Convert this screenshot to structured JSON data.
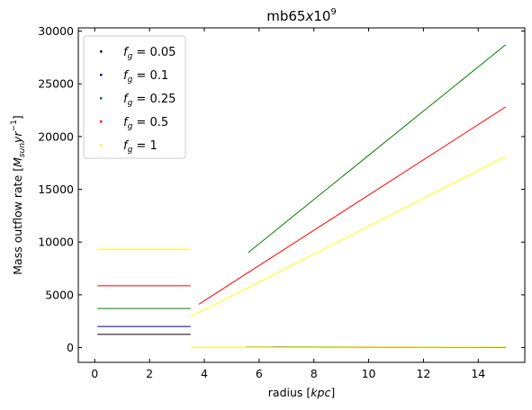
{
  "chart_data": {
    "type": "scatter",
    "title_base": "mb65",
    "title_italic": "x",
    "title_tail": "10",
    "title_exp": "9",
    "xlabel_prefix": "radius [",
    "xlabel_italic": "kpc",
    "xlabel_suffix": "]",
    "ylabel_prefix": "Mass outflow rate [",
    "ylabel_M": "M",
    "ylabel_sub": "sun",
    "ylabel_yr": "yr",
    "ylabel_exp": "−1",
    "ylabel_suffix": "]",
    "xlim": [
      -0.6,
      15.7
    ],
    "ylim": [
      -1400,
      30300
    ],
    "xticks": [
      0,
      2,
      4,
      6,
      8,
      10,
      12,
      14
    ],
    "xtick_labels": [
      "0",
      "2",
      "4",
      "6",
      "8",
      "10",
      "12",
      "14"
    ],
    "yticks": [
      0,
      5000,
      10000,
      15000,
      20000,
      25000,
      30000
    ],
    "ytick_labels": [
      "0",
      "5000",
      "10000",
      "15000",
      "20000",
      "25000",
      "30000"
    ],
    "legend_position": "upper-left",
    "series": [
      {
        "name": "= 0.05",
        "label_f": "f",
        "label_sub": "g",
        "color": "#000000",
        "segments": [
          [
            [
              0.1,
              1250
            ],
            [
              3.5,
              1250
            ]
          ],
          [
            [
              5.5,
              30
            ],
            [
              15.0,
              30
            ]
          ]
        ]
      },
      {
        "name": "= 0.1",
        "label_f": "f",
        "label_sub": "g",
        "color": "#00008b",
        "segments": [
          [
            [
              0.1,
              2000
            ],
            [
              3.5,
              2000
            ]
          ],
          [
            [
              6.5,
              40
            ],
            [
              15.0,
              40
            ]
          ]
        ]
      },
      {
        "name": "= 0.25",
        "label_f": "f",
        "label_sub": "g",
        "color": "#008000",
        "segments": [
          [
            [
              0.1,
              3700
            ],
            [
              3.5,
              3700
            ]
          ],
          [
            [
              5.6,
              9000
            ],
            [
              15.0,
              28700
            ]
          ],
          [
            [
              7.0,
              50
            ],
            [
              15.0,
              50
            ]
          ]
        ]
      },
      {
        "name": "= 0.5",
        "label_f": "f",
        "label_sub": "g",
        "color": "#ff0000",
        "segments": [
          [
            [
              0.1,
              5850
            ],
            [
              3.5,
              5850
            ]
          ],
          [
            [
              3.8,
              4100
            ],
            [
              15.0,
              22800
            ]
          ],
          [
            [
              9.5,
              30
            ],
            [
              11.6,
              30
            ]
          ]
        ]
      },
      {
        "name": "= 1",
        "label_f": "f",
        "label_sub": "g",
        "color": "#ffff00",
        "segments": [
          [
            [
              0.1,
              9300
            ],
            [
              3.5,
              9300
            ]
          ],
          [
            [
              3.5,
              2900
            ],
            [
              15.0,
              18100
            ]
          ],
          [
            [
              3.5,
              0
            ],
            [
              15.0,
              60
            ]
          ]
        ]
      }
    ]
  }
}
